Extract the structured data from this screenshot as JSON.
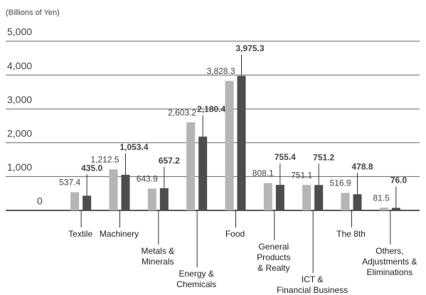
{
  "chart_data": {
    "type": "bar",
    "y_label": "(Billions of Yen)",
    "categories": [
      "Textile",
      "Machinery",
      "Metals &\nMinerals",
      "Energy &\nChemicals",
      "Food",
      "General\nProducts\n& Realty",
      "ICT &\nFinancial Business",
      "The 8th",
      "Others,\nAdjustments &\nEliminations"
    ],
    "series": [
      {
        "color": "#b5b5b5",
        "values": [
          537.4,
          1212.5,
          643.9,
          2603.2,
          3828.3,
          808.1,
          751.1,
          516.9,
          81.5
        ],
        "value_labels": [
          "537.4",
          "1,212.5",
          "643.9",
          "2,603.2",
          "3,828.3",
          "808.1",
          "751.1",
          "516.9",
          "81.5"
        ]
      },
      {
        "color": "#4d4d4d",
        "values": [
          435.0,
          1053.4,
          657.2,
          2180.4,
          3975.3,
          755.4,
          751.2,
          478.8,
          76.0
        ],
        "value_labels": [
          "435.0",
          "1,053.4",
          "657.2",
          "2,180.4",
          "3,975.3",
          "755.4",
          "751.2",
          "478.8",
          "76.0"
        ]
      }
    ],
    "ylim": [
      0,
      5000
    ],
    "yticks": [
      0,
      {
        "value": 1000,
        "label": "1,000"
      },
      {
        "value": 2000,
        "label": "2,000"
      },
      {
        "value": 3000,
        "label": "3,000"
      },
      {
        "value": 4000,
        "label": "4,000"
      },
      {
        "value": 5000,
        "label": "5,000"
      }
    ],
    "grid": true
  }
}
